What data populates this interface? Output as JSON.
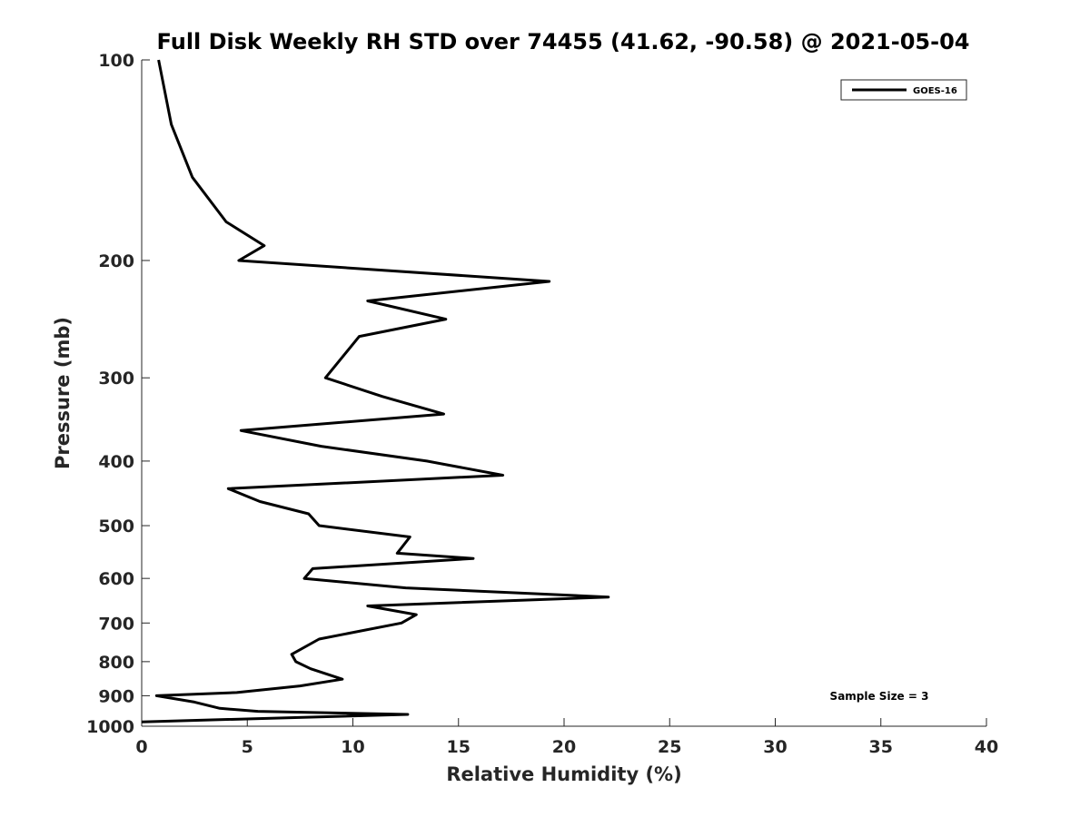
{
  "chart_data": {
    "type": "line",
    "title": "Full Disk Weekly RH STD over 74455 (41.62, -90.58) @ 2021-05-04",
    "xlabel": "Relative Humidity (%)",
    "ylabel": "Pressure (mb)",
    "xlim": [
      0,
      40
    ],
    "ylim": [
      100,
      1000
    ],
    "y_scale": "log",
    "y_reversed": true,
    "x_ticks": [
      0,
      5,
      10,
      15,
      20,
      25,
      30,
      35,
      40
    ],
    "y_ticks": [
      100,
      200,
      300,
      400,
      500,
      600,
      700,
      800,
      900,
      1000
    ],
    "grid": false,
    "legend_position": "top-right",
    "annotation": "Sample Size = 3",
    "series": [
      {
        "name": "GOES-16",
        "color": "#000000",
        "points": [
          [
            0.8,
            100
          ],
          [
            1.4,
            125
          ],
          [
            2.4,
            150
          ],
          [
            4.0,
            175
          ],
          [
            5.8,
            190
          ],
          [
            4.6,
            200
          ],
          [
            19.3,
            215
          ],
          [
            10.7,
            230
          ],
          [
            14.4,
            245
          ],
          [
            10.3,
            260
          ],
          [
            8.7,
            300
          ],
          [
            11.4,
            320
          ],
          [
            14.3,
            340
          ],
          [
            4.7,
            360
          ],
          [
            8.5,
            380
          ],
          [
            13.5,
            400
          ],
          [
            17.1,
            420
          ],
          [
            4.1,
            440
          ],
          [
            5.6,
            460
          ],
          [
            7.9,
            480
          ],
          [
            8.4,
            500
          ],
          [
            12.7,
            520
          ],
          [
            12.1,
            550
          ],
          [
            15.7,
            560
          ],
          [
            8.1,
            580
          ],
          [
            7.7,
            600
          ],
          [
            12.5,
            620
          ],
          [
            22.1,
            640
          ],
          [
            10.7,
            660
          ],
          [
            13.0,
            680
          ],
          [
            12.3,
            700
          ],
          [
            8.4,
            740
          ],
          [
            7.1,
            780
          ],
          [
            7.3,
            800
          ],
          [
            8.0,
            820
          ],
          [
            9.5,
            850
          ],
          [
            7.5,
            870
          ],
          [
            4.5,
            890
          ],
          [
            0.7,
            900
          ],
          [
            2.5,
            920
          ],
          [
            3.7,
            940
          ],
          [
            5.5,
            950
          ],
          [
            12.6,
            960
          ],
          [
            0.0,
            985
          ]
        ]
      }
    ]
  }
}
